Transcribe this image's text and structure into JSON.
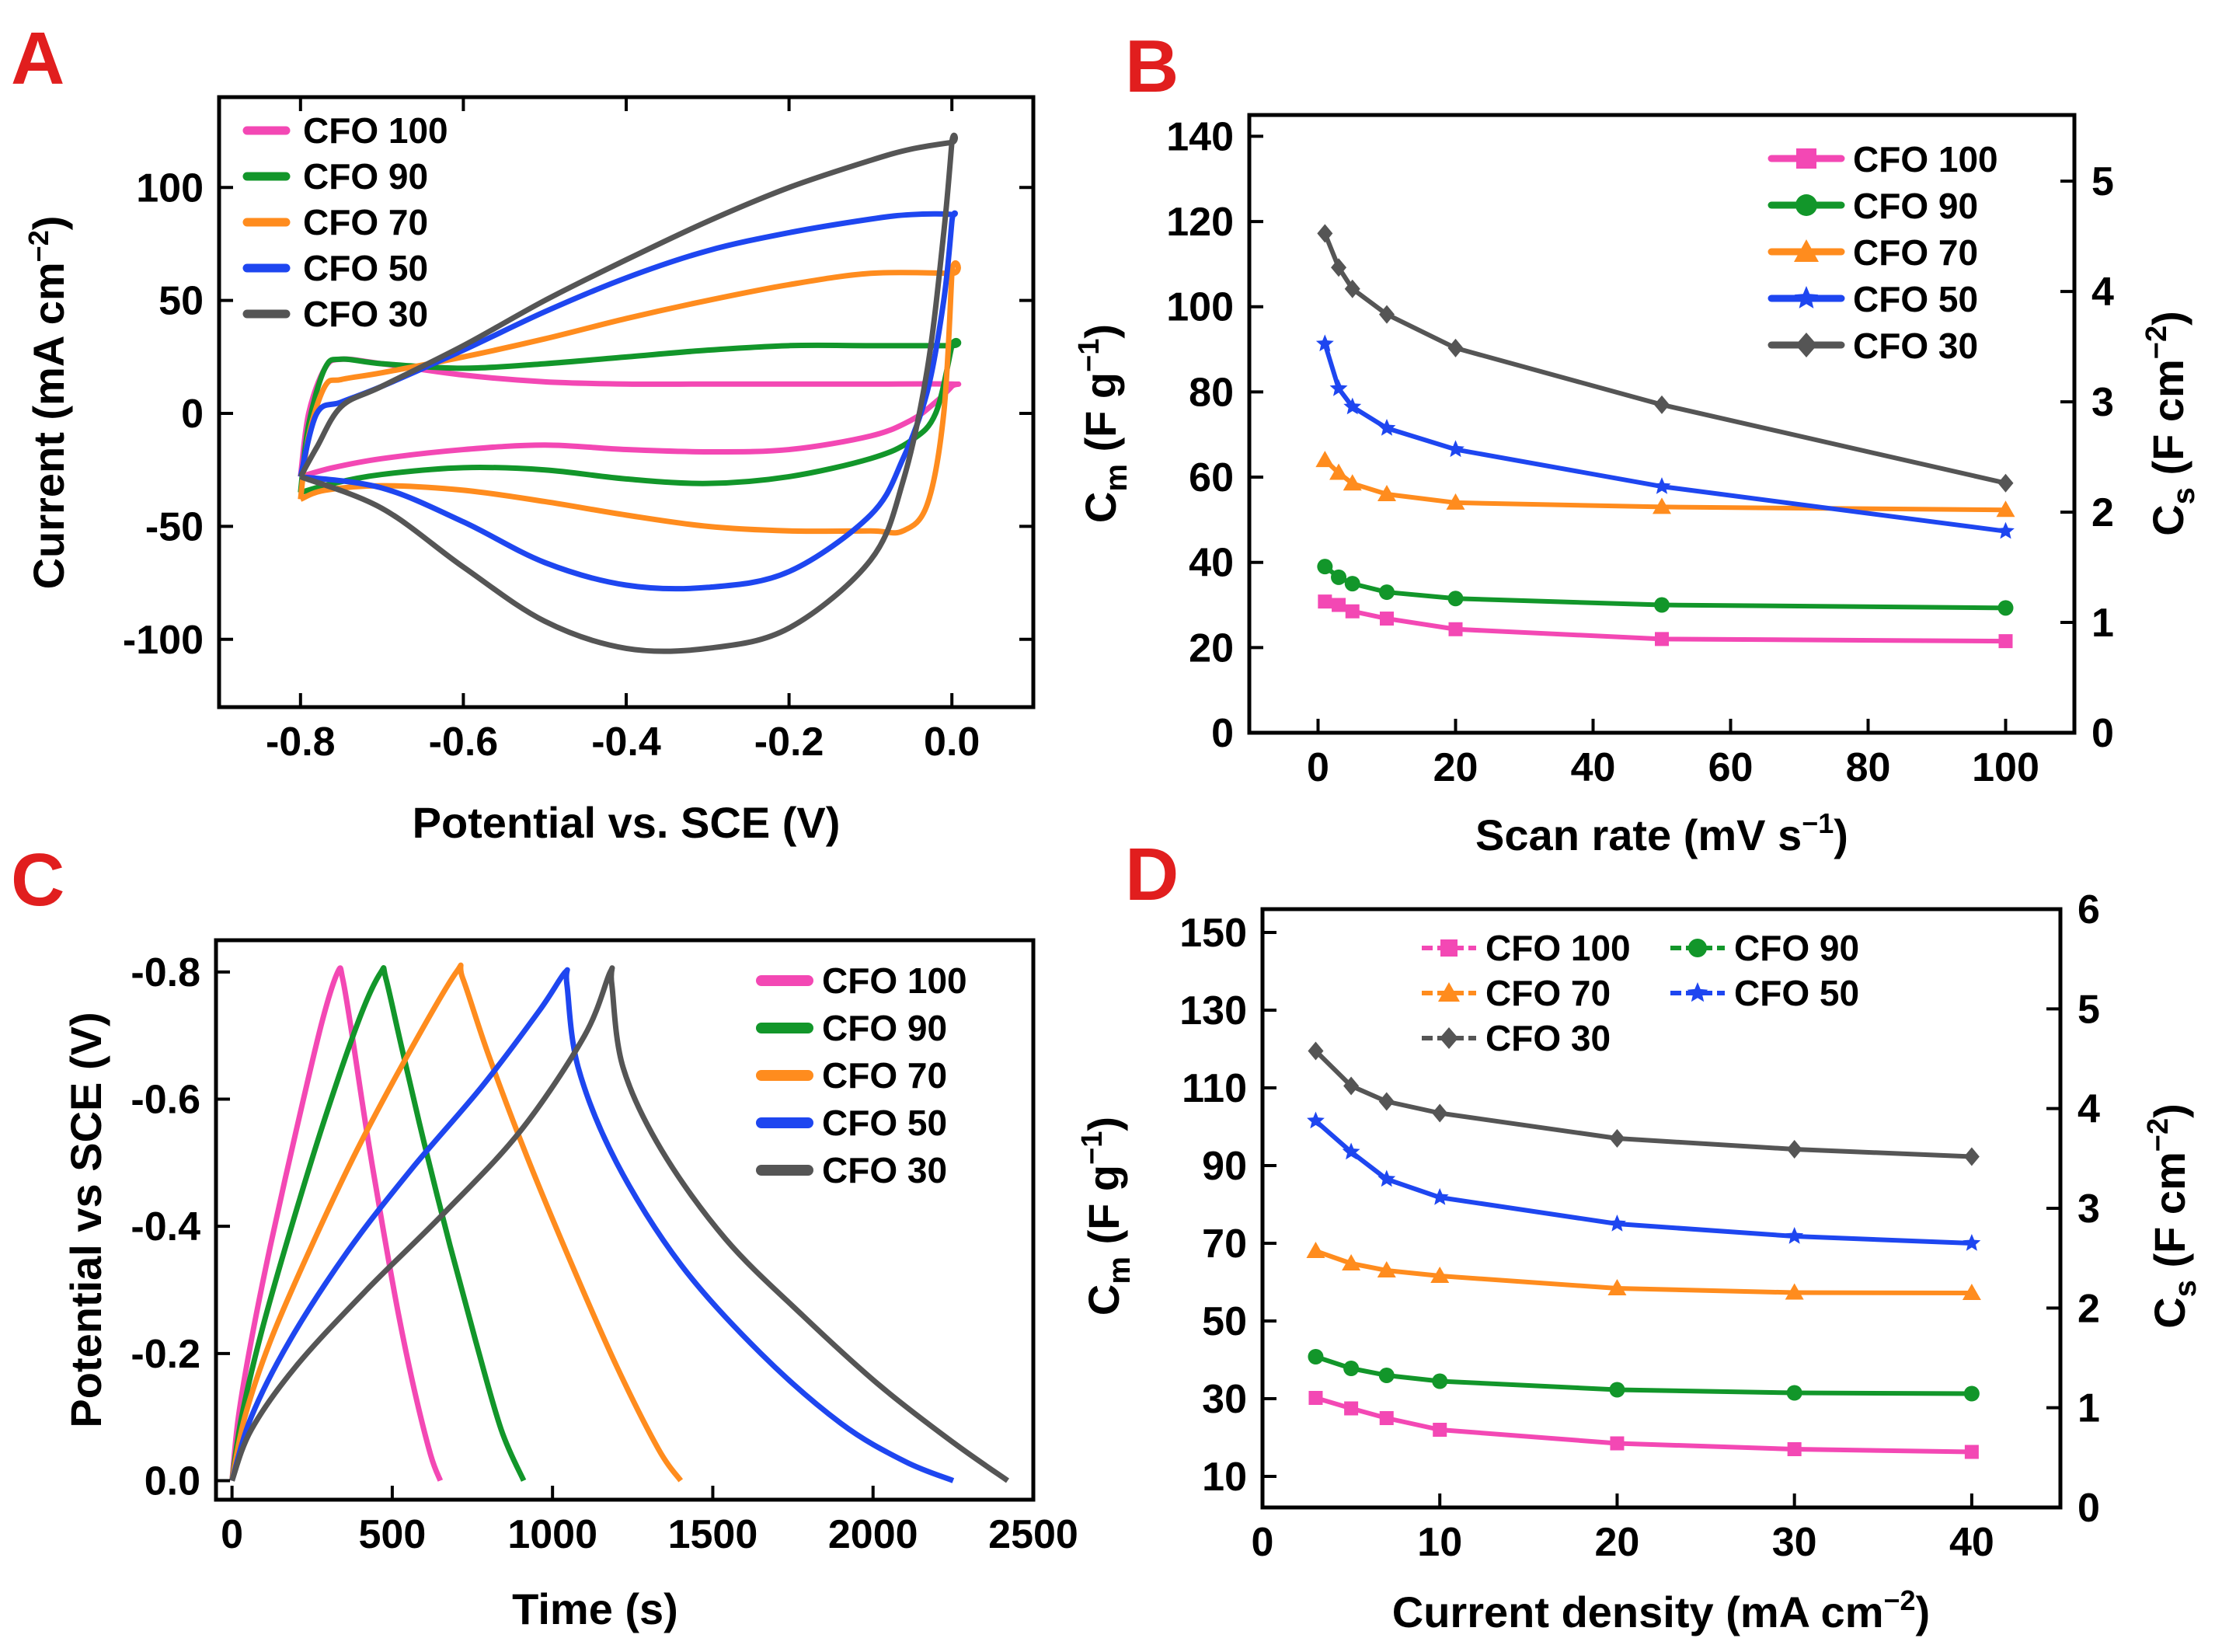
{
  "colors": {
    "pink": "#f348b4",
    "green": "#12962a",
    "orange": "#ff8c1e",
    "blue": "#1e46f0",
    "gray": "#555555",
    "panel_label": "#e11e1e"
  },
  "panels": {
    "A": {
      "label": "A",
      "title_y_main": "Current (mA cm",
      "title_y_sup": "−2",
      "title_y_tail": ")",
      "title_x": "Potential vs. SCE (V)"
    },
    "B": {
      "label": "B",
      "y_left_main": "C",
      "y_left_sub": "m",
      "y_left_tail": " (F g",
      "y_left_sup": "−1",
      "y_left_end": ")",
      "y_right_main": "C",
      "y_right_sub": "s",
      "y_right_tail": " (F cm",
      "y_right_sup": "−2",
      "y_right_end": ")",
      "x_main": "Scan rate (mV s",
      "x_sup": "−1",
      "x_end": ")"
    },
    "C": {
      "label": "C",
      "title_y": "Potential vs SCE (V)",
      "title_x": "Time (s)"
    },
    "D": {
      "label": "D",
      "y_left_main": "C",
      "y_left_sub": "m",
      "y_left_tail": " (F g",
      "y_left_sup": "−1",
      "y_left_end": ")",
      "y_right_main": "C",
      "y_right_sub": "s",
      "y_right_tail": " (F cm",
      "y_right_sup": "−2",
      "y_right_end": ")",
      "x_main": "Current density (mA cm",
      "x_sup": "−2",
      "x_end": ")"
    }
  },
  "chart_data": [
    {
      "id": "A",
      "type": "line",
      "title": "",
      "xlabel": "Potential vs. SCE (V)",
      "ylabel": "Current (mA cm−2)",
      "xlim": [
        -0.9,
        0.1
      ],
      "ylim": [
        -130,
        140
      ],
      "xticks": [
        -0.8,
        -0.6,
        -0.4,
        -0.2,
        0.0
      ],
      "xtick_labels": [
        "-0.8",
        "-0.6",
        "-0.4",
        "-0.2",
        "0.0"
      ],
      "yticks": [
        -100,
        -50,
        0,
        50,
        100
      ],
      "ytick_labels": [
        "-100",
        "-50",
        "0",
        "50",
        "100"
      ],
      "legend": "top-left",
      "series": [
        {
          "name": "CFO 100",
          "color": "pink",
          "x": [
            -0.8,
            -0.79,
            -0.77,
            -0.75,
            -0.7,
            -0.6,
            -0.5,
            -0.4,
            -0.3,
            -0.2,
            -0.1,
            0.0,
            0.0,
            -0.02,
            -0.05,
            -0.1,
            -0.2,
            -0.3,
            -0.4,
            -0.5,
            -0.6,
            -0.7,
            -0.76,
            -0.8
          ],
          "y": [
            -28,
            0,
            20,
            24,
            22,
            17,
            14,
            13,
            13,
            13,
            13,
            13,
            12,
            5,
            -3,
            -10,
            -16,
            -17,
            -16,
            -14,
            -16,
            -20,
            -24,
            -28
          ]
        },
        {
          "name": "CFO 90",
          "color": "green",
          "x": [
            -0.8,
            -0.79,
            -0.77,
            -0.75,
            -0.7,
            -0.6,
            -0.5,
            -0.4,
            -0.3,
            -0.2,
            -0.1,
            0.0,
            0.0,
            -0.02,
            -0.05,
            -0.1,
            -0.2,
            -0.3,
            -0.4,
            -0.5,
            -0.6,
            -0.7,
            -0.76,
            -0.8
          ],
          "y": [
            -35,
            -5,
            20,
            24,
            22,
            20,
            22,
            25,
            28,
            30,
            30,
            30,
            30,
            0,
            -12,
            -20,
            -28,
            -31,
            -29,
            -25,
            -24,
            -27,
            -31,
            -35
          ]
        },
        {
          "name": "CFO 70",
          "color": "orange",
          "x": [
            -0.8,
            -0.79,
            -0.77,
            -0.75,
            -0.7,
            -0.6,
            -0.5,
            -0.4,
            -0.3,
            -0.2,
            -0.1,
            0.0,
            0.0,
            -0.01,
            -0.03,
            -0.06,
            -0.1,
            -0.2,
            -0.3,
            -0.4,
            -0.5,
            -0.6,
            -0.7,
            -0.77,
            -0.8
          ],
          "y": [
            -38,
            -10,
            12,
            15,
            18,
            25,
            33,
            42,
            50,
            57,
            62,
            62,
            62,
            0,
            -40,
            -52,
            -52,
            -52,
            -50,
            -45,
            -39,
            -34,
            -32,
            -34,
            -38
          ]
        },
        {
          "name": "CFO 50",
          "color": "blue",
          "x": [
            -0.8,
            -0.78,
            -0.75,
            -0.7,
            -0.6,
            -0.5,
            -0.4,
            -0.3,
            -0.2,
            -0.1,
            -0.05,
            0.0,
            0.0,
            -0.01,
            -0.03,
            -0.06,
            -0.1,
            -0.2,
            -0.3,
            -0.4,
            -0.5,
            -0.6,
            -0.7,
            -0.8
          ],
          "y": [
            -28,
            0,
            5,
            12,
            28,
            45,
            60,
            72,
            80,
            86,
            88,
            88,
            85,
            50,
            10,
            -20,
            -45,
            -70,
            -77,
            -76,
            -66,
            -48,
            -33,
            -28
          ]
        },
        {
          "name": "CFO 30",
          "color": "gray",
          "x": [
            -0.8,
            -0.78,
            -0.75,
            -0.7,
            -0.6,
            -0.5,
            -0.4,
            -0.3,
            -0.2,
            -0.1,
            -0.05,
            0.0,
            0.0,
            -0.01,
            -0.03,
            -0.06,
            -0.1,
            -0.2,
            -0.3,
            -0.4,
            -0.5,
            -0.6,
            -0.7,
            -0.8
          ],
          "y": [
            -28,
            -15,
            3,
            12,
            30,
            50,
            68,
            85,
            100,
            112,
            117,
            120,
            120,
            80,
            20,
            -30,
            -65,
            -95,
            -104,
            -104,
            -92,
            -68,
            -42,
            -28
          ]
        }
      ]
    },
    {
      "id": "B",
      "type": "line",
      "title": "",
      "xlabel": "Scan rate (mV s−1)",
      "ylabel": "Cm (F g−1)",
      "ylabel_right": "Cs (F cm−2)",
      "xlim": [
        -10,
        110
      ],
      "ylim": [
        0,
        145
      ],
      "ylim_right": [
        0,
        5.6
      ],
      "xticks": [
        0,
        20,
        40,
        60,
        80,
        100
      ],
      "xtick_labels": [
        "0",
        "20",
        "40",
        "60",
        "80",
        "100"
      ],
      "yticks": [
        0,
        20,
        40,
        60,
        80,
        100,
        120,
        140
      ],
      "ytick_labels": [
        "0",
        "20",
        "40",
        "60",
        "80",
        "100",
        "120",
        "140"
      ],
      "yticks_right": [
        0,
        1,
        2,
        3,
        4,
        5
      ],
      "ytick_labels_right": [
        "0",
        "1",
        "2",
        "3",
        "4",
        "5"
      ],
      "legend": "top-right",
      "x": [
        1,
        3,
        5,
        10,
        20,
        50,
        100
      ],
      "series": [
        {
          "name": "CFO 100",
          "color": "pink",
          "marker": "square",
          "values": [
            30.8,
            30,
            28.5,
            26.8,
            24.3,
            22,
            21.5
          ]
        },
        {
          "name": "CFO 90",
          "color": "green",
          "marker": "circle",
          "values": [
            39,
            36.5,
            35,
            33,
            31.5,
            30,
            29.3
          ]
        },
        {
          "name": "CFO 70",
          "color": "orange",
          "marker": "triangle",
          "values": [
            64,
            61,
            58.5,
            56,
            54,
            53,
            52.3
          ]
        },
        {
          "name": "CFO 50",
          "color": "blue",
          "marker": "star",
          "values": [
            91.3,
            80.8,
            76.5,
            71.5,
            66.5,
            57.8,
            47.3
          ]
        },
        {
          "name": "CFO 30",
          "color": "gray",
          "marker": "diamond",
          "values": [
            117.2,
            109.2,
            104.2,
            98.2,
            90.3,
            77,
            58.6
          ]
        }
      ]
    },
    {
      "id": "C",
      "type": "line",
      "title": "",
      "xlabel": "Time (s)",
      "ylabel": "Potential vs SCE (V)",
      "xlim": [
        -50,
        2500
      ],
      "ylim": [
        0.03,
        -0.85
      ],
      "xticks": [
        0,
        500,
        1000,
        1500,
        2000,
        2500
      ],
      "xtick_labels": [
        "0",
        "500",
        "1000",
        "1500",
        "2000",
        "2500"
      ],
      "yticks": [
        0.0,
        -0.2,
        -0.4,
        -0.6,
        -0.8
      ],
      "ytick_labels": [
        "0.0",
        "-0.2",
        "-0.4",
        "-0.6",
        "-0.8"
      ],
      "legend": "top-right",
      "series": [
        {
          "name": "CFO 100",
          "color": "pink",
          "x": [
            0,
            20,
            60,
            120,
            200,
            280,
            330,
            345,
            375,
            420,
            470,
            520,
            570,
            620,
            650
          ],
          "y": [
            0,
            -0.1,
            -0.22,
            -0.37,
            -0.55,
            -0.72,
            -0.8,
            -0.79,
            -0.7,
            -0.55,
            -0.4,
            -0.26,
            -0.14,
            -0.04,
            0
          ]
        },
        {
          "name": "CFO 90",
          "color": "green",
          "x": [
            0,
            30,
            90,
            180,
            290,
            400,
            465,
            480,
            530,
            600,
            680,
            760,
            840,
            910
          ],
          "y": [
            0,
            -0.1,
            -0.23,
            -0.39,
            -0.57,
            -0.73,
            -0.8,
            -0.79,
            -0.68,
            -0.53,
            -0.37,
            -0.22,
            -0.08,
            0
          ]
        },
        {
          "name": "CFO 70",
          "color": "orange",
          "x": [
            0,
            40,
            120,
            240,
            390,
            560,
            700,
            720,
            800,
            920,
            1060,
            1200,
            1330,
            1400
          ],
          "y": [
            0,
            -0.1,
            -0.22,
            -0.36,
            -0.52,
            -0.68,
            -0.8,
            -0.79,
            -0.67,
            -0.51,
            -0.34,
            -0.18,
            -0.05,
            0
          ]
        },
        {
          "name": "CFO 50",
          "color": "blue",
          "x": [
            0,
            60,
            180,
            360,
            560,
            780,
            960,
            1040,
            1045,
            1080,
            1200,
            1400,
            1650,
            1900,
            2100,
            2250
          ],
          "y": [
            0,
            -0.1,
            -0.22,
            -0.36,
            -0.49,
            -0.62,
            -0.74,
            -0.8,
            -0.78,
            -0.65,
            -0.5,
            -0.34,
            -0.2,
            -0.09,
            -0.03,
            0
          ]
        },
        {
          "name": "CFO 30",
          "color": "gray",
          "x": [
            0,
            60,
            200,
            420,
            660,
            900,
            1100,
            1180,
            1185,
            1220,
            1340,
            1540,
            1780,
            2020,
            2250,
            2420
          ],
          "y": [
            0,
            -0.08,
            -0.18,
            -0.3,
            -0.42,
            -0.55,
            -0.7,
            -0.8,
            -0.78,
            -0.65,
            -0.52,
            -0.38,
            -0.26,
            -0.15,
            -0.06,
            0
          ]
        }
      ]
    },
    {
      "id": "D",
      "type": "line",
      "title": "",
      "xlabel": "Current density (mA cm−2)",
      "ylabel": "Cm (F g−1)",
      "ylabel_right": "Cs (F cm−2)",
      "xlim": [
        0,
        45
      ],
      "ylim": [
        2,
        156
      ],
      "ylim_right": [
        0,
        6
      ],
      "xticks": [
        0,
        10,
        20,
        30,
        40
      ],
      "xtick_labels": [
        "0",
        "10",
        "20",
        "30",
        "40"
      ],
      "yticks": [
        10,
        30,
        50,
        70,
        90,
        110,
        130,
        150
      ],
      "ytick_labels": [
        "10",
        "30",
        "50",
        "70",
        "90",
        "110",
        "130",
        "150"
      ],
      "yticks_right": [
        0,
        1,
        2,
        3,
        4,
        5,
        6
      ],
      "ytick_labels_right": [
        "0",
        "1",
        "2",
        "3",
        "4",
        "5",
        "6"
      ],
      "legend": "top (two columns)",
      "x": [
        3,
        5,
        7,
        10,
        20,
        30,
        40
      ],
      "series": [
        {
          "name": "CFO 100",
          "color": "pink",
          "marker": "square",
          "values": [
            30.2,
            27.5,
            25,
            22,
            18.5,
            17,
            16.3
          ]
        },
        {
          "name": "CFO 90",
          "color": "green",
          "marker": "circle",
          "values": [
            40.8,
            37.8,
            36,
            34.5,
            32.3,
            31.5,
            31.3
          ]
        },
        {
          "name": "CFO 70",
          "color": "orange",
          "marker": "triangle",
          "values": [
            68,
            64.8,
            63,
            61.6,
            58.4,
            57.3,
            57.2
          ]
        },
        {
          "name": "CFO 50",
          "color": "blue",
          "marker": "star",
          "values": [
            101.5,
            93.5,
            86.5,
            81.8,
            75,
            71.8,
            70
          ]
        },
        {
          "name": "CFO 30",
          "color": "gray",
          "marker": "diamond",
          "values": [
            119.5,
            110.5,
            106.5,
            103.5,
            97,
            94.2,
            92.3
          ]
        }
      ]
    }
  ]
}
